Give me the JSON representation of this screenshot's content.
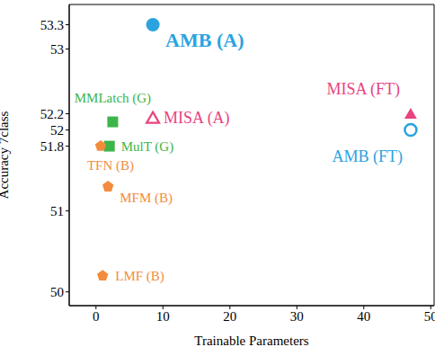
{
  "chart_data": {
    "type": "scatter",
    "x_label": "Trainable Parameters",
    "y_label": "Accuracy 7class",
    "xlim": [
      -4,
      50.5
    ],
    "xticks": [
      0,
      10,
      20,
      30,
      40,
      50
    ],
    "ylim": [
      49.83,
      53.55
    ],
    "yticks": [
      50,
      51,
      51.8,
      52,
      52.2,
      53,
      53.3
    ],
    "grid": false,
    "series": [
      {
        "name": "AMB (A)",
        "color": "#2aa3df",
        "marker": "circle",
        "x": [
          8.5
        ],
        "values": [
          53.3
        ]
      },
      {
        "name": "MMLatch (G)",
        "color": "#3cb54a",
        "marker": "square",
        "x": [
          2.5
        ],
        "values": [
          52.1
        ]
      },
      {
        "name": "MISA (A)",
        "color": "#e8437f",
        "marker": "open_triangle",
        "x": [
          8.5
        ],
        "values": [
          52.15
        ]
      },
      {
        "name": "MulT (G)",
        "color": "#3cb54a",
        "marker": "square",
        "x": [
          2
        ],
        "values": [
          51.8
        ]
      },
      {
        "name": "TFN (B)",
        "color": "#f28c3c",
        "marker": "pentagon",
        "x": [
          0.7
        ],
        "values": [
          51.8
        ]
      },
      {
        "name": "MFM (B)",
        "color": "#f28c3c",
        "marker": "pentagon",
        "x": [
          1.8
        ],
        "values": [
          51.3
        ]
      },
      {
        "name": "LMF (B)",
        "color": "#f28c3c",
        "marker": "pentagon",
        "x": [
          1
        ],
        "values": [
          50.2
        ]
      },
      {
        "name": "MISA (FT)",
        "color": "#e8437f",
        "marker": "triangle",
        "x": [
          47
        ],
        "values": [
          52.2
        ]
      },
      {
        "name": "AMB (FT)",
        "color": "#2aa3df",
        "marker": "open_circle",
        "x": [
          47
        ],
        "values": [
          52
        ]
      }
    ]
  }
}
